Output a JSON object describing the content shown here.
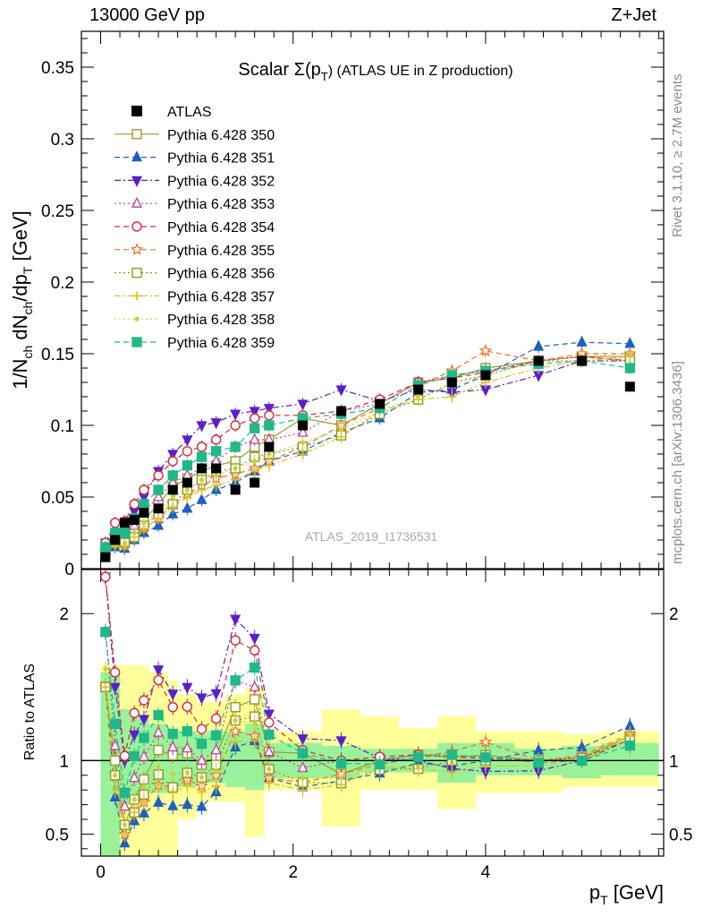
{
  "header": {
    "left": "13000 GeV pp",
    "right": "Z+Jet"
  },
  "side": {
    "rivet": "Rivet 3.1.10, ≥ 2.7M events",
    "mcplots": "mcplots.cern.ch [arXiv:1306.3436]"
  },
  "watermark": "ATLAS_2019_I1736531",
  "chart_data": [
    {
      "type": "scatter",
      "panel": "main",
      "title": "Scalar Σ(p_T) (ATLAS UE in Z production)",
      "title_main": "Scalar Σ(p",
      "title_sub": "T",
      "title_rest": ") (ATLAS UE in Z production)",
      "ylabel": "1/N_ch dN_ch/dp_T [GeV]",
      "ylabel_parts": [
        "1/N",
        "ch",
        " dN",
        "ch",
        "/dp",
        "T",
        " [GeV]"
      ],
      "xlim": [
        -0.2,
        5.85
      ],
      "ylim": [
        0,
        0.375
      ],
      "yticks": [
        0,
        0.05,
        0.1,
        0.15,
        0.2,
        0.25,
        0.3,
        0.35
      ],
      "ytick_labels": [
        "0",
        "0.05",
        "0.1",
        "0.15",
        "0.2",
        "0.25",
        "0.3",
        "0.35"
      ],
      "x": [
        0.05,
        0.15,
        0.25,
        0.35,
        0.45,
        0.6,
        0.75,
        0.9,
        1.05,
        1.2,
        1.4,
        1.6,
        1.75,
        2.1,
        2.5,
        2.9,
        3.3,
        3.65,
        4.0,
        4.55,
        5.0,
        5.5
      ],
      "atlas": {
        "name": "ATLAS",
        "values": [
          0.008,
          0.02,
          0.032,
          0.034,
          0.039,
          0.042,
          0.055,
          0.06,
          0.07,
          0.07,
          0.055,
          0.06,
          0.085,
          0.1,
          0.11,
          0.115,
          0.125,
          0.13,
          0.135,
          0.145,
          0.145,
          0.127
        ]
      },
      "series": [
        {
          "name": "Pythia 6.428 350",
          "color": "#9a9a2a",
          "marker": "square-open",
          "dash": "solid",
          "values": [
            0.012,
            0.02,
            0.018,
            0.025,
            0.034,
            0.045,
            0.057,
            0.063,
            0.068,
            0.072,
            0.075,
            0.085,
            0.09,
            0.105,
            0.1,
            0.115,
            0.13,
            0.133,
            0.14,
            0.145,
            0.148,
            0.148
          ]
        },
        {
          "name": "Pythia 6.428 351",
          "color": "#1f5fc0",
          "marker": "triangle-up",
          "dash": "dashed",
          "values": [
            0.012,
            0.015,
            0.014,
            0.02,
            0.025,
            0.03,
            0.038,
            0.042,
            0.048,
            0.055,
            0.06,
            0.068,
            0.075,
            0.082,
            0.095,
            0.105,
            0.123,
            0.125,
            0.135,
            0.155,
            0.158,
            0.157
          ]
        },
        {
          "name": "Pythia 6.428 352",
          "color": "#5a20c8",
          "marker": "triangle-down",
          "dash": "dashdot",
          "values": [
            0.018,
            0.03,
            0.032,
            0.04,
            0.05,
            0.068,
            0.08,
            0.09,
            0.1,
            0.102,
            0.108,
            0.11,
            0.112,
            0.115,
            0.125,
            0.117,
            0.125,
            0.123,
            0.125,
            0.135,
            0.145,
            0.145
          ]
        },
        {
          "name": "Pythia 6.428 353",
          "color": "#c03d98",
          "marker": "triangle-up-open",
          "dash": "dotted",
          "values": [
            0.015,
            0.022,
            0.022,
            0.03,
            0.04,
            0.05,
            0.06,
            0.065,
            0.07,
            0.075,
            0.085,
            0.09,
            0.09,
            0.095,
            0.11,
            0.115,
            0.13,
            0.135,
            0.138,
            0.145,
            0.148,
            0.145
          ]
        },
        {
          "name": "Pythia 6.428 354",
          "color": "#d8283c",
          "marker": "circle-open",
          "dash": "dashed",
          "values": [
            0.018,
            0.032,
            0.033,
            0.045,
            0.055,
            0.065,
            0.075,
            0.082,
            0.085,
            0.09,
            0.1,
            0.105,
            0.107,
            0.107,
            0.11,
            0.118,
            0.13,
            0.133,
            0.137,
            0.145,
            0.148,
            0.145
          ]
        },
        {
          "name": "Pythia 6.428 355",
          "color": "#f07020",
          "marker": "star-open",
          "dash": "dashed",
          "values": [
            0.012,
            0.018,
            0.016,
            0.022,
            0.028,
            0.035,
            0.045,
            0.052,
            0.058,
            0.063,
            0.066,
            0.07,
            0.075,
            0.085,
            0.1,
            0.112,
            0.128,
            0.138,
            0.152,
            0.145,
            0.15,
            0.15
          ]
        },
        {
          "name": "Pythia 6.428 356",
          "color": "#8a9a1a",
          "marker": "square-open",
          "dash": "dotted",
          "values": [
            0.012,
            0.018,
            0.018,
            0.022,
            0.03,
            0.038,
            0.045,
            0.055,
            0.062,
            0.068,
            0.07,
            0.078,
            0.08,
            0.085,
            0.093,
            0.108,
            0.118,
            0.13,
            0.135,
            0.145,
            0.145,
            0.145
          ]
        },
        {
          "name": "Pythia 6.428 357",
          "color": "#d8c020",
          "marker": "cross",
          "dash": "dashdot",
          "values": [
            0.012,
            0.016,
            0.016,
            0.022,
            0.028,
            0.035,
            0.043,
            0.05,
            0.055,
            0.058,
            0.062,
            0.068,
            0.072,
            0.08,
            0.092,
            0.11,
            0.118,
            0.12,
            0.13,
            0.14,
            0.145,
            0.148
          ]
        },
        {
          "name": "Pythia 6.428 358",
          "color": "#c8d040",
          "marker": "dot",
          "dash": "dotted",
          "values": [
            0.013,
            0.018,
            0.018,
            0.025,
            0.032,
            0.04,
            0.05,
            0.055,
            0.062,
            0.065,
            0.07,
            0.075,
            0.08,
            0.088,
            0.097,
            0.11,
            0.12,
            0.128,
            0.135,
            0.145,
            0.148,
            0.15
          ]
        },
        {
          "name": "Pythia 6.428 359",
          "color": "#20b888",
          "marker": "square",
          "dash": "dashed",
          "values": [
            0.015,
            0.025,
            0.025,
            0.035,
            0.045,
            0.055,
            0.065,
            0.072,
            0.078,
            0.082,
            0.085,
            0.098,
            0.1,
            0.105,
            0.108,
            0.112,
            0.128,
            0.135,
            0.138,
            0.143,
            0.145,
            0.14
          ]
        }
      ]
    },
    {
      "type": "scatter",
      "panel": "ratio",
      "ylabel": "Ratio to ATLAS",
      "xlabel": "p_T [GeV]",
      "xlabel_main": "p",
      "xlabel_sub": "T",
      "xlabel_rest": " [GeV]",
      "ylim": [
        0.35,
        2.3
      ],
      "yticks": [
        0.5,
        1,
        2
      ],
      "ytick_labels": [
        "0.5",
        "1",
        "2"
      ],
      "xticks": [
        0,
        2,
        4
      ],
      "xtick_labels": [
        "0",
        "2",
        "4"
      ],
      "bands": {
        "edges": [
          0,
          0.1,
          0.2,
          0.3,
          0.4,
          0.5,
          0.7,
          0.8,
          1.0,
          1.1,
          1.3,
          1.5,
          1.7,
          1.8,
          2.3,
          2.7,
          3.1,
          3.5,
          3.9,
          4.3,
          4.8,
          5.2,
          5.8
        ],
        "green_lo": [
          0.35,
          0.35,
          0.7,
          0.75,
          0.75,
          0.78,
          0.8,
          0.82,
          0.85,
          0.85,
          0.82,
          0.8,
          0.88,
          0.88,
          0.88,
          0.92,
          0.92,
          0.85,
          0.9,
          0.9,
          0.88,
          0.9
        ],
        "green_hi": [
          1.6,
          1.6,
          1.35,
          1.3,
          1.3,
          1.25,
          1.2,
          1.2,
          1.18,
          1.2,
          1.2,
          1.25,
          1.12,
          1.12,
          1.1,
          1.08,
          1.08,
          1.12,
          1.12,
          1.08,
          1.1,
          1.12
        ],
        "yellow_lo": [
          0.35,
          0.35,
          0.35,
          0.35,
          0.35,
          0.35,
          0.35,
          0.6,
          0.7,
          0.72,
          0.72,
          0.48,
          0.8,
          0.8,
          0.55,
          0.8,
          0.8,
          0.67,
          0.78,
          0.78,
          0.82,
          0.82
        ],
        "yellow_hi": [
          1.65,
          1.65,
          1.65,
          1.65,
          1.65,
          1.6,
          1.55,
          1.45,
          1.4,
          1.4,
          1.45,
          1.5,
          1.2,
          1.2,
          1.35,
          1.3,
          1.22,
          1.3,
          1.2,
          1.2,
          1.18,
          1.2
        ]
      }
    }
  ]
}
